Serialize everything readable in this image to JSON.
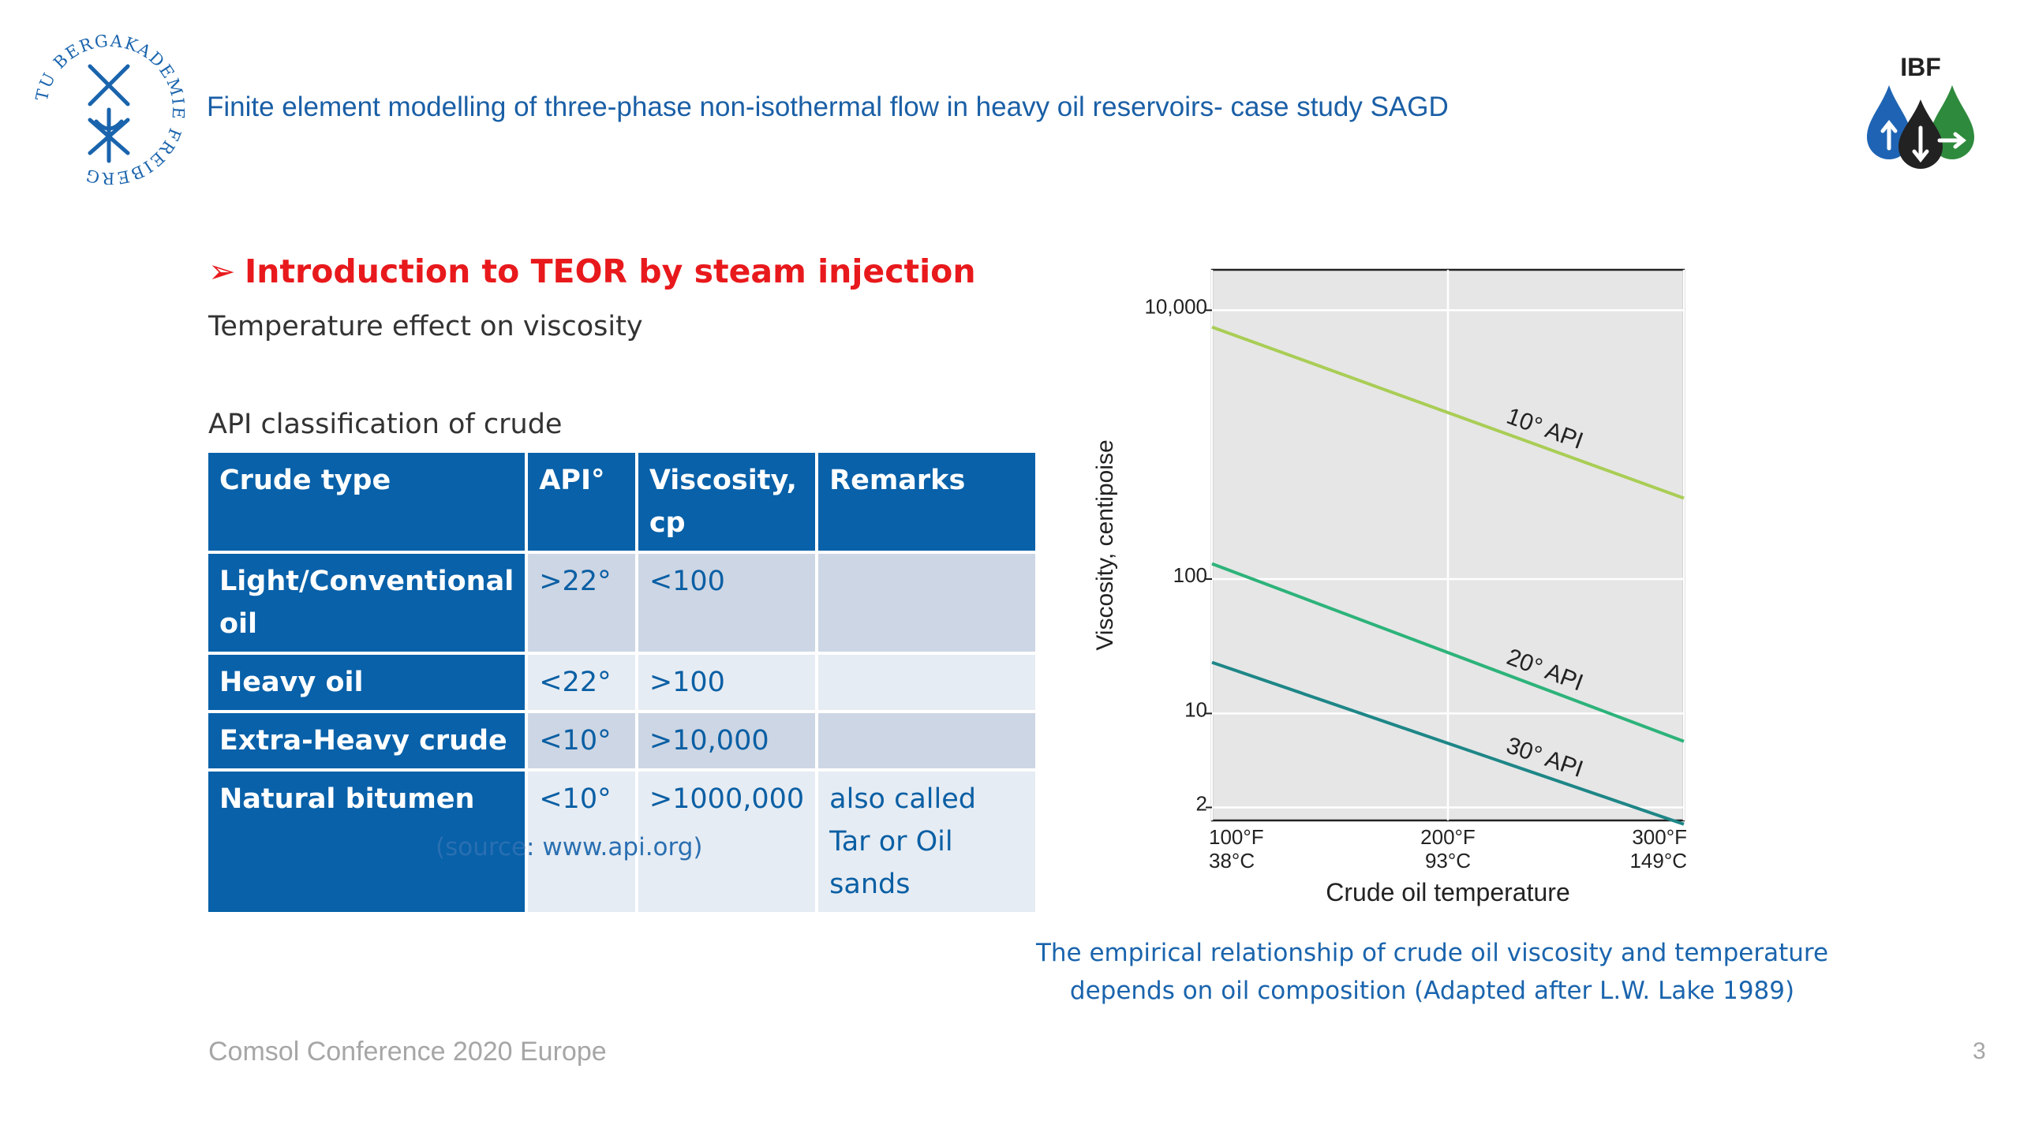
{
  "header": {
    "title": "Finite element modelling of three-phase non-isothermal flow in heavy oil reservoirs- case study SAGD",
    "tu_logo": {
      "text": "TU BERGAKADEMIE FREIBERG",
      "icon": "tu-freiberg-seal-icon"
    },
    "ibf_logo": {
      "text": "IBF",
      "icon": "ibf-drops-logo-icon"
    }
  },
  "section": {
    "arrow": "➢",
    "title": "Introduction to TEOR by steam injection",
    "subtitle": "Temperature effect on viscosity"
  },
  "table": {
    "caption": "API classification of crude",
    "headers": [
      "Crude type",
      "API°",
      "Viscosity, cp",
      "Remarks"
    ],
    "rows": [
      [
        "Light/Conventional oil",
        ">22°",
        "<100",
        ""
      ],
      [
        "Heavy oil",
        "<22°",
        ">100",
        ""
      ],
      [
        "Extra-Heavy crude",
        "<10°",
        ">10,000",
        ""
      ],
      [
        "Natural bitumen",
        "<10°",
        ">1000,000",
        " also called Tar or Oil sands"
      ]
    ]
  },
  "source_note": "(source: www.api.org)",
  "chart_data": {
    "type": "line",
    "xlabel": "Crude oil temperature",
    "ylabel": "Viscosity, centipoise",
    "x_ticks": [
      {
        "value": 100,
        "label": "100°F",
        "sublabel": "38°C"
      },
      {
        "value": 200,
        "label": "200°F",
        "sublabel": "93°C"
      },
      {
        "value": 300,
        "label": "300°F",
        "sublabel": "149°C"
      }
    ],
    "y_ticks": [
      {
        "value": 2,
        "label": "2"
      },
      {
        "value": 10,
        "label": "10"
      },
      {
        "value": 100,
        "label": "100"
      },
      {
        "value": 10000,
        "label": "10,000"
      }
    ],
    "y_scale": "log",
    "xlim": [
      100,
      300
    ],
    "ylim": [
      1.6,
      20000
    ],
    "grid": true,
    "series": [
      {
        "name": "10° API",
        "x": [
          100,
          300
        ],
        "y": [
          7500,
          400
        ],
        "color": "#a9cd55"
      },
      {
        "name": "20° API",
        "x": [
          100,
          300
        ],
        "y": [
          130,
          6.2
        ],
        "color": "#2db37a"
      },
      {
        "name": "30° API",
        "x": [
          100,
          300
        ],
        "y": [
          24,
          1.5
        ],
        "color": "#1e8687"
      }
    ]
  },
  "chart_caption": "The empirical relationship of crude oil viscosity and temperature depends on oil composition (Adapted after L.W. Lake 1989)",
  "footer": {
    "text": "Comsol Conference 2020 Europe",
    "page": "3"
  }
}
